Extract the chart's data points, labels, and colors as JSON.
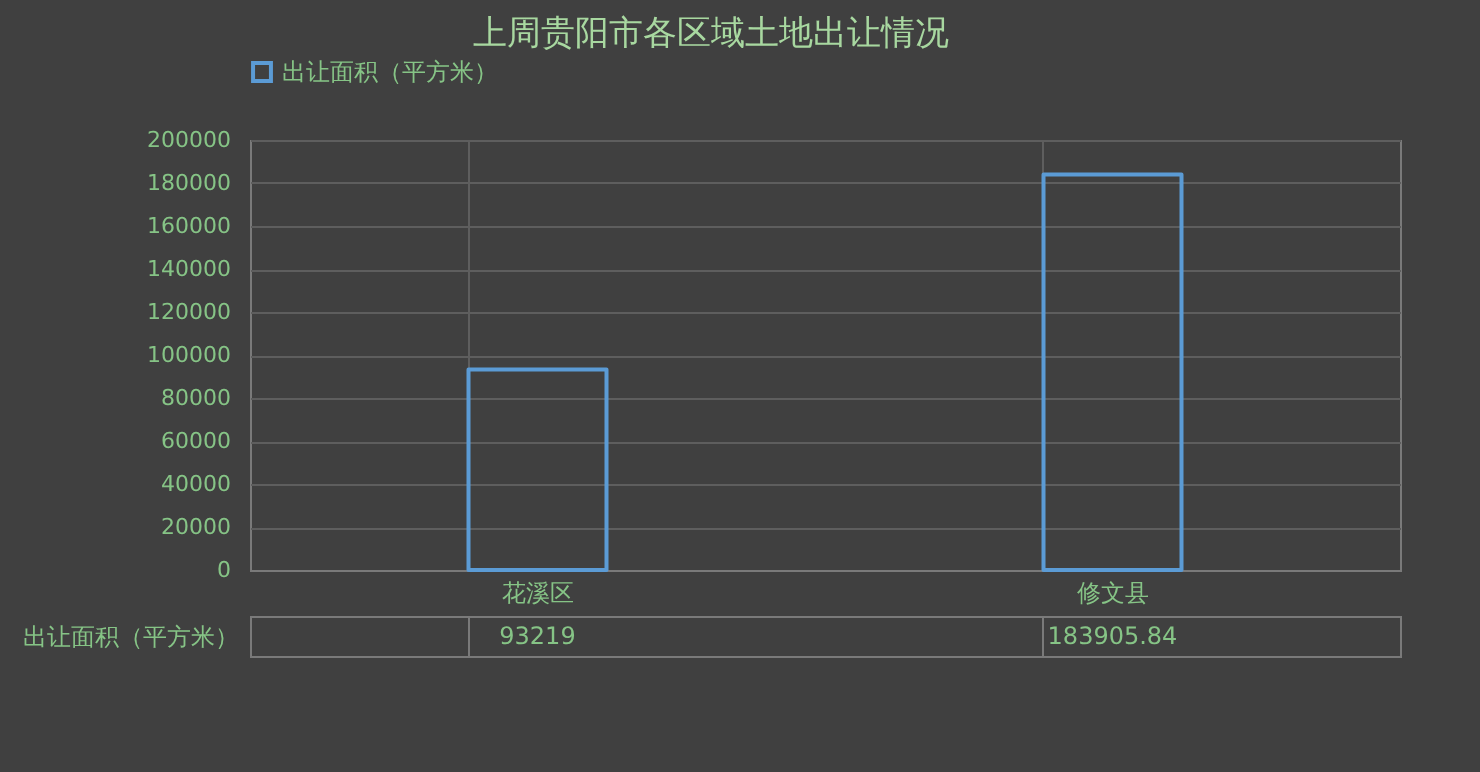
{
  "chart_data": {
    "type": "bar",
    "title": "上周贵阳市各区域土地出让情况",
    "categories": [
      "花溪区",
      "修文县"
    ],
    "series": [
      {
        "name": "出让面积（平方米）",
        "color": "#5b9bd5",
        "values": [
          93219,
          183905.84
        ]
      }
    ],
    "ylim": [
      0,
      200000
    ],
    "yticks": [
      0,
      20000,
      40000,
      60000,
      80000,
      100000,
      120000,
      140000,
      160000,
      180000,
      200000
    ],
    "grid": true,
    "legend": "top",
    "data_labels": true
  }
}
